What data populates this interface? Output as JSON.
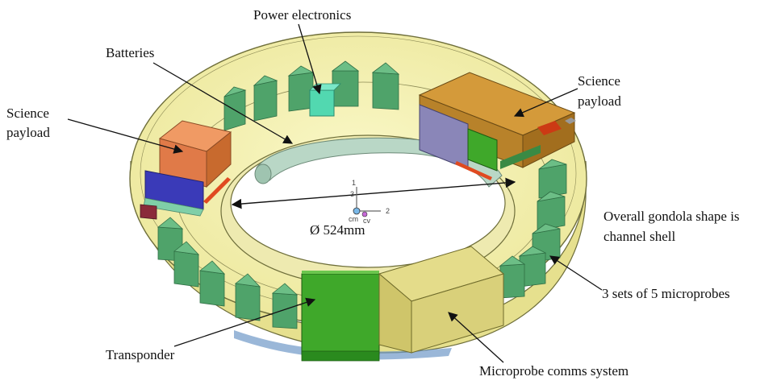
{
  "labels": {
    "power_electronics": "Power electronics",
    "batteries": "Batteries",
    "science_payload_left_1": "Science",
    "science_payload_left_2": "payload",
    "science_payload_right_1": "Science",
    "science_payload_right_2": "payload",
    "overall_shape_1": "Overall gondola shape is",
    "overall_shape_2": "channel shell",
    "microprobes": "3 sets of 5 microprobes",
    "transponder": "Transponder",
    "comms": "Microprobe comms system",
    "diameter": "Ø 524mm"
  },
  "axes": {
    "axis_1": "1",
    "axis_2": "2",
    "axis_3": "3",
    "cm": "cm",
    "cv": "cv"
  },
  "colors": {
    "shell_fill": "#f3f0a6",
    "shell_edge": "#6e6e3a",
    "probe": "#4fa36a",
    "probe_dark": "#2f7a48",
    "science_orange": "#e07a48",
    "science_brown": "#b8822a",
    "battery_blue": "#3a3ab8",
    "transponder_green": "#3fa82a",
    "comms_yellow": "#d9d07a",
    "power_cyan": "#52d8b0",
    "battery_tube": "#b9d7c6"
  }
}
